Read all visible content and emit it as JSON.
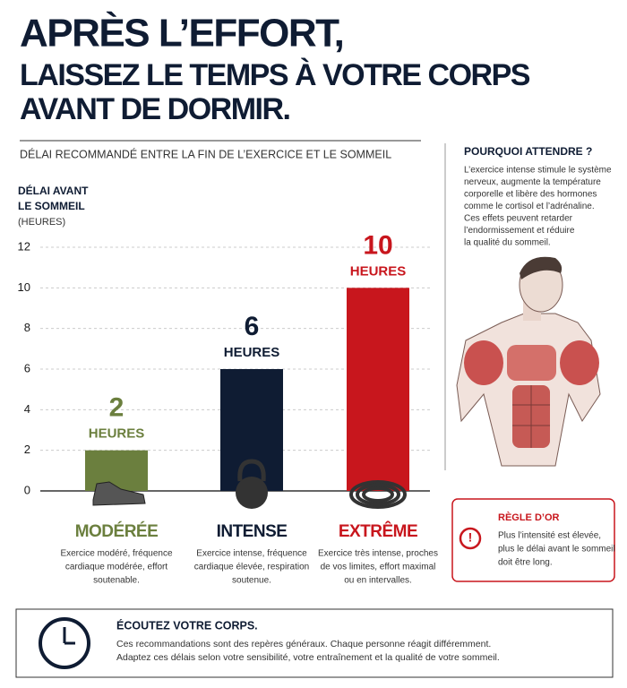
{
  "chart_data": {
    "type": "bar",
    "title": [
      "APRÈS L’EFFORT,",
      "LAISSEZ LE TEMPS À VOTRE CORPS",
      "AVANT DE DORMIR."
    ],
    "subtitle": "DÉLAI RECOMMANDÉ ENTRE LA FIN DE L’EXERCICE ET LE SOMMEIL",
    "y_label": [
      "DÉLAI AVANT",
      "LE SOMMEIL",
      "(HEURES)"
    ],
    "categories": [
      "MODÉRÉE",
      "INTENSE",
      "EXTRÊME"
    ],
    "values": [
      2,
      6,
      10
    ],
    "unit_label": "HEURES",
    "colors": [
      "#6b7f3e",
      "#0f1c33",
      "#c8161d"
    ],
    "descriptions": [
      [
        "Exercice modéré, fréquence",
        "cardiaque modérée, effort",
        "soutenable."
      ],
      [
        "Exercice intense, fréquence",
        "cardiaque élevée, respiration",
        "soutenue."
      ],
      [
        "Exercice très intense, proches",
        "de vos limites, effort maximal",
        "ou en intervalles."
      ]
    ],
    "ylim": [
      0,
      12
    ],
    "yticks": [
      0,
      2,
      4,
      6,
      8,
      10,
      12
    ],
    "grid": true
  },
  "sidebar": {
    "title": "POURQUOI ATTENDRE ?",
    "lines": [
      "L’exercice intense stimule le système",
      "nerveux, augmente la température",
      "corporelle et libère des hormones",
      "comme le cortisol et l’adrénaline.",
      "Ces effets peuvent retarder",
      "l’endormissement et réduire",
      "la qualité du sommeil."
    ]
  },
  "rule": {
    "title": "RÈGLE D’OR",
    "lines": [
      "Plus l’intensité est élevée,",
      "plus le délai avant le sommeil",
      "doit être long."
    ]
  },
  "footer": {
    "title": "ÉCOUTEZ VOTRE CORPS.",
    "lines": [
      "Ces recommandations sont des repères généraux. Chaque personne réagit différemment.",
      "Adaptez ces délais selon votre sensibilité, votre entraînement et la qualité de votre sommeil."
    ]
  }
}
